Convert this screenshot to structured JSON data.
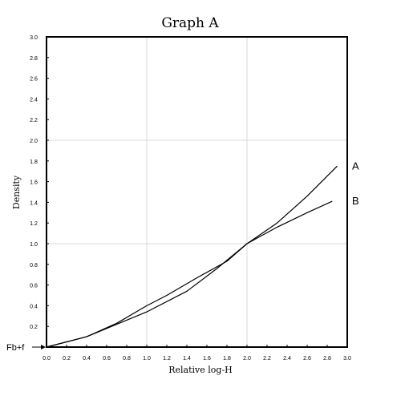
{
  "chart_data": {
    "type": "line",
    "title": "Graph A",
    "xlabel": "Relative log-H",
    "ylabel": "Density",
    "xlim": [
      0,
      3.0
    ],
    "ylim": [
      0,
      3.0
    ],
    "x_ticks": [
      "0.0",
      "0.2",
      "0.4",
      "0.6",
      "0.8",
      "1.0",
      "1.2",
      "1.4",
      "1.6",
      "1.8",
      "2.0",
      "2.2",
      "2.4",
      "2.6",
      "2.8",
      "3.0"
    ],
    "y_ticks": [
      "0.2",
      "0.4",
      "0.6",
      "0.8",
      "1.0",
      "1.2",
      "1.4",
      "1.6",
      "1.8",
      "2.0",
      "2.2",
      "2.4",
      "2.6",
      "2.8",
      "3.0"
    ],
    "grid": true,
    "baseline_marker": "Fb+f",
    "series": [
      {
        "name": "A",
        "points": [
          [
            0,
            0
          ],
          [
            0.4,
            0.1
          ],
          [
            0.7,
            0.23
          ],
          [
            1.0,
            0.4
          ],
          [
            1.2,
            0.5
          ],
          [
            1.5,
            0.67
          ],
          [
            1.8,
            0.83
          ],
          [
            2.0,
            1.0
          ],
          [
            2.3,
            1.2
          ],
          [
            2.6,
            1.46
          ],
          [
            2.9,
            1.75
          ]
        ]
      },
      {
        "name": "B",
        "points": [
          [
            0,
            0
          ],
          [
            0.4,
            0.1
          ],
          [
            0.7,
            0.22
          ],
          [
            1.0,
            0.34
          ],
          [
            1.4,
            0.54
          ],
          [
            1.7,
            0.76
          ],
          [
            2.0,
            1.0
          ],
          [
            2.3,
            1.16
          ],
          [
            2.6,
            1.3
          ],
          [
            2.85,
            1.41
          ]
        ]
      }
    ]
  }
}
